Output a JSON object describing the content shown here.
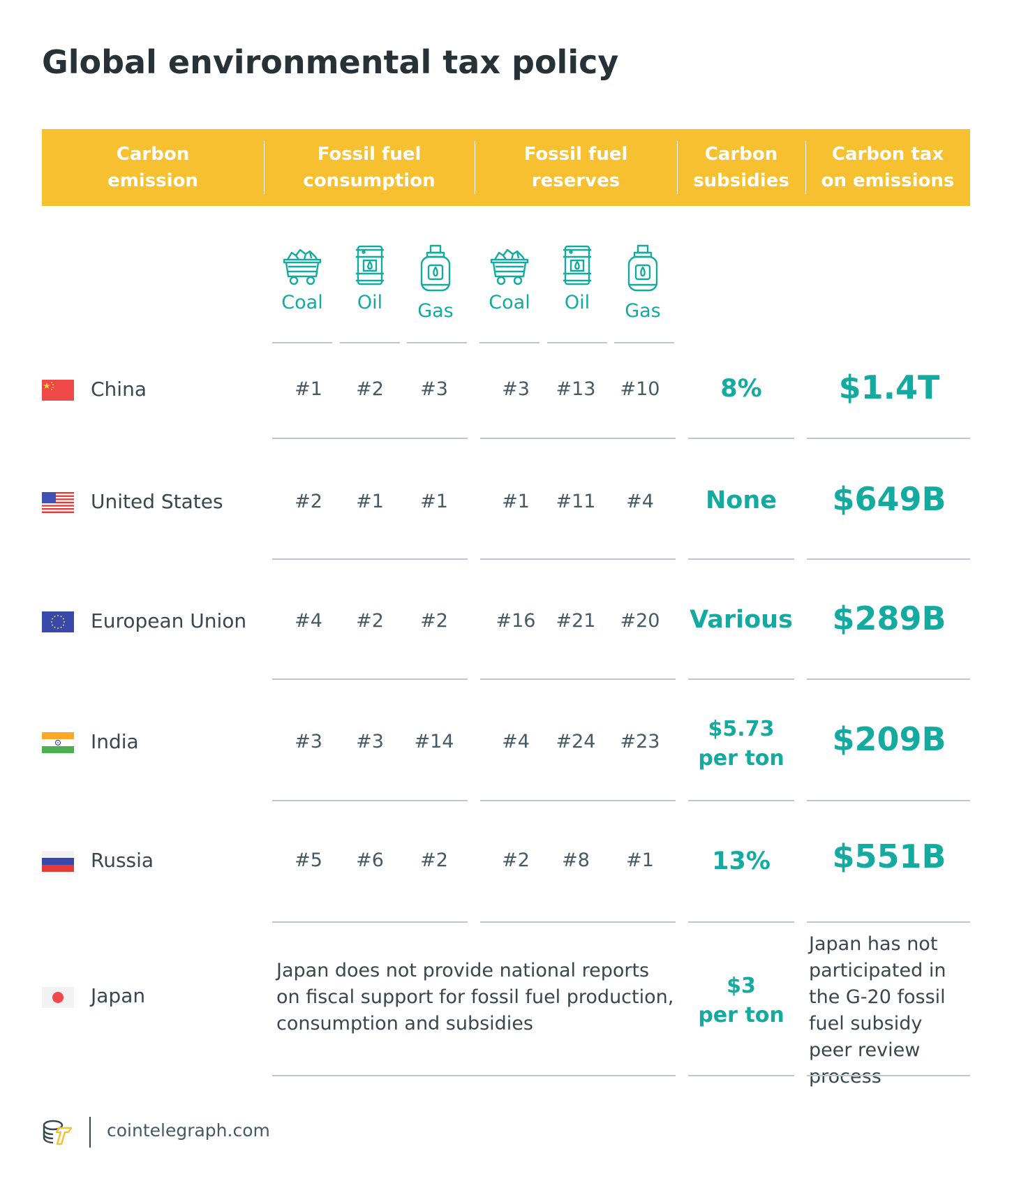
{
  "title": "Global environmental tax policy",
  "header": {
    "carbon_emission": "Carbon\nemission",
    "fossil_consumption": "Fossil fuel\nconsumption",
    "fossil_reserves": "Fossil fuel\nreserves",
    "carbon_subsidies": "Carbon\nsubsidies",
    "carbon_tax": "Carbon tax\non emissions"
  },
  "subheaders": {
    "consumption": {
      "coal": "Coal",
      "oil": "Oil",
      "gas": "Gas"
    },
    "reserves": {
      "coal": "Coal",
      "oil": "Oil",
      "gas": "Gas"
    }
  },
  "rows": [
    {
      "country": "China",
      "flag": "china-flag",
      "consumption": [
        "#1",
        "#2",
        "#3"
      ],
      "reserves": [
        "#3",
        "#13",
        "#10"
      ],
      "subsidy": "8%",
      "tax": "$1.4T"
    },
    {
      "country": "United States",
      "flag": "usa-flag",
      "consumption": [
        "#2",
        "#1",
        "#1"
      ],
      "reserves": [
        "#1",
        "#11",
        "#4"
      ],
      "subsidy": "None",
      "tax": "$649B"
    },
    {
      "country": "European Union",
      "flag": "eu-flag",
      "consumption": [
        "#4",
        "#2",
        "#2"
      ],
      "reserves": [
        "#16",
        "#21",
        "#20"
      ],
      "subsidy": "Various",
      "tax": "$289B"
    },
    {
      "country": "India",
      "flag": "india-flag",
      "consumption": [
        "#3",
        "#3",
        "#14"
      ],
      "reserves": [
        "#4",
        "#24",
        "#23"
      ],
      "subsidy": "$5.73\nper ton",
      "tax": "$209B"
    },
    {
      "country": "Russia",
      "flag": "russia-flag",
      "consumption": [
        "#5",
        "#6",
        "#2"
      ],
      "reserves": [
        "#2",
        "#8",
        "#1"
      ],
      "subsidy": "13%",
      "tax": "$551B"
    }
  ],
  "japan": {
    "country": "Japan",
    "flag": "japan-flag",
    "note": "Japan does not provide national reports on fiscal support for fossil fuel production, consumption and subsidies",
    "subsidy": "$3\nper ton",
    "tax_note": "Japan has not participated in the G-20 fossil fuel subsidy peer review process"
  },
  "footer": {
    "site": "cointelegraph.com",
    "logo": "cointelegraph-logo-icon"
  },
  "colors": {
    "accent": "#f6c031",
    "teal": "#13aaa0",
    "text": "#37474f",
    "rule": "#bfc5cb"
  }
}
